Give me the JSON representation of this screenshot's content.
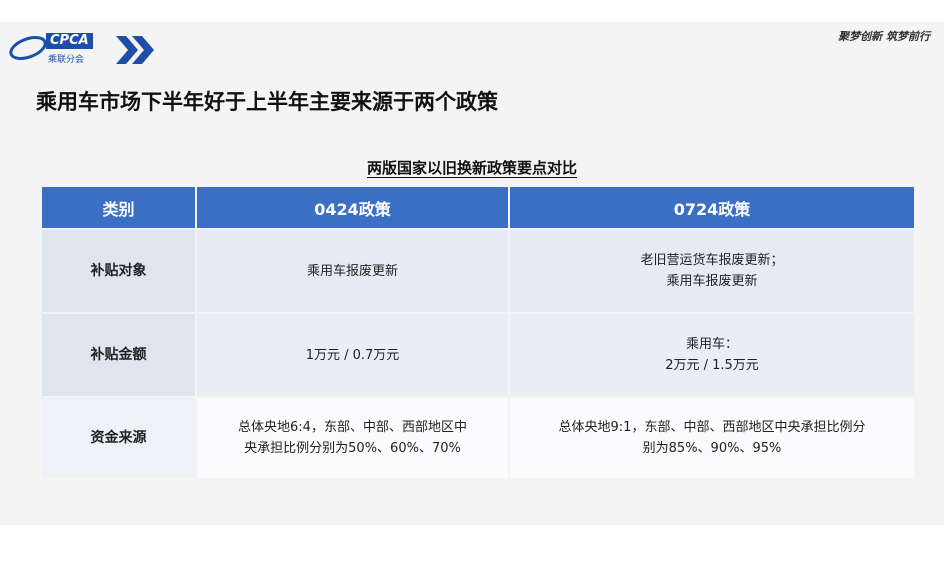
{
  "header": {
    "logo": "CPCA",
    "logo_sub": "乘联分会",
    "slogan": "聚梦创新 筑梦前行"
  },
  "title": "乘用车市场下半年好于上半年主要来源于两个政策",
  "subtitle": "两版国家以旧换新政策要点对比",
  "table": {
    "columns": [
      "类别",
      "0424政策",
      "0724政策"
    ],
    "rows": [
      [
        [
          "补贴对象"
        ],
        [
          "乘用车报废更新"
        ],
        [
          "老旧营运货车报废更新；",
          "乘用车报废更新"
        ]
      ],
      [
        [
          "补贴金额"
        ],
        [
          "1万元 / 0.7万元"
        ],
        [
          "乘用车：",
          "2万元 / 1.5万元"
        ]
      ],
      [
        [
          "资金来源"
        ],
        [
          "总体央地6:4，东部、中部、西部地区中",
          "央承担比例分别为50%、60%、70%"
        ],
        [
          "总体央地9:1，东部、中部、西部地区中央承担比例分",
          "别为85%、90%、95%"
        ]
      ]
    ]
  }
}
